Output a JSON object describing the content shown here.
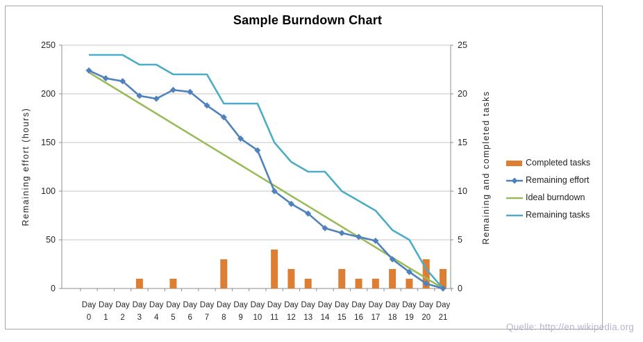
{
  "source_note": "Quelle: http://en.wikipedia.org",
  "chart_data": {
    "type": "line",
    "title": "Sample Burndown Chart",
    "day_prefix": "Day",
    "days": [
      0,
      1,
      2,
      3,
      4,
      5,
      6,
      7,
      8,
      9,
      10,
      11,
      12,
      13,
      14,
      15,
      16,
      17,
      18,
      19,
      20,
      21
    ],
    "left_axis": {
      "label": "Remaining effort (hours)",
      "min": 0,
      "max": 250,
      "step": 50,
      "ticks": [
        0,
        50,
        100,
        150,
        200,
        250
      ]
    },
    "right_axis": {
      "label": "Remaining and completed tasks",
      "min": 0,
      "max": 25,
      "step": 5,
      "ticks": [
        0,
        5,
        10,
        15,
        20,
        25
      ]
    },
    "grid": true,
    "legend_position": "right",
    "series": [
      {
        "name": "Completed tasks",
        "render": "bar",
        "axis": "right",
        "color": "#dd7e33",
        "values": [
          0,
          0,
          0,
          1,
          0,
          1,
          0,
          0,
          3,
          0,
          0,
          4,
          2,
          1,
          0,
          2,
          1,
          1,
          2,
          1,
          3,
          2
        ]
      },
      {
        "name": "Remaining effort",
        "render": "line-diamond",
        "axis": "left",
        "color": "#4f81bd",
        "values": [
          224,
          216,
          213,
          198,
          195,
          204,
          202,
          188,
          176,
          154,
          142,
          100,
          87,
          77,
          62,
          57,
          53,
          49,
          30,
          17,
          5,
          0
        ]
      },
      {
        "name": "Ideal burndown",
        "render": "line",
        "axis": "left",
        "color": "#9bbb59",
        "values": [
          222,
          211.4,
          200.9,
          190.3,
          179.7,
          169.1,
          158.6,
          148,
          137.4,
          126.9,
          116.3,
          105.7,
          95.1,
          84.6,
          74,
          63.4,
          52.9,
          42.3,
          31.7,
          21.1,
          10.6,
          0
        ]
      },
      {
        "name": "Remaining tasks",
        "render": "line",
        "axis": "right",
        "color": "#4bacc6",
        "values": [
          24,
          24,
          24,
          23,
          23,
          22,
          22,
          22,
          19,
          19,
          19,
          15,
          13,
          12,
          12,
          10,
          9,
          8,
          6,
          5,
          2,
          0
        ]
      }
    ]
  }
}
